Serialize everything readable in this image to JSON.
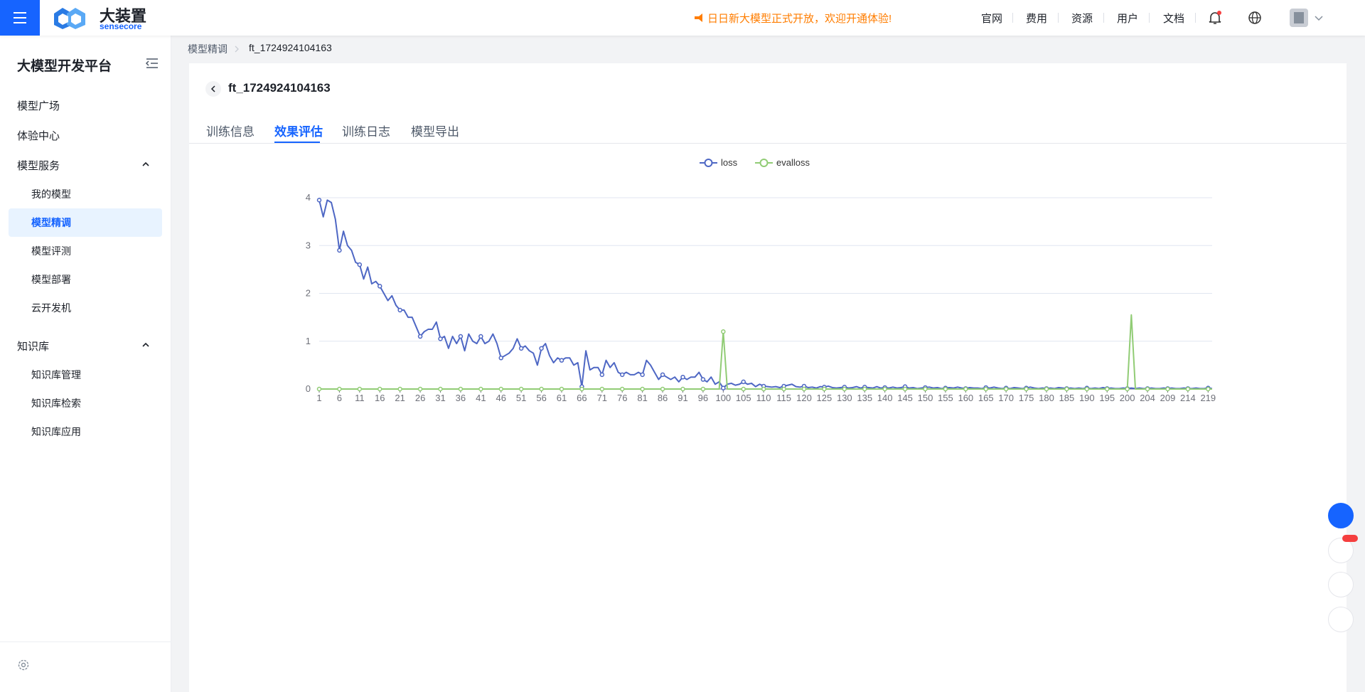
{
  "header": {
    "logo": {
      "name": "大装置",
      "sub": "sensecore"
    },
    "notice": "日日新大模型正式开放，欢迎开通体验!",
    "nav": [
      "官网",
      "费用",
      "资源",
      "用户",
      "文档"
    ]
  },
  "sidebar": {
    "title": "大模型开发平台",
    "menu": [
      "模型广场",
      "体验中心"
    ],
    "groups": [
      {
        "label": "模型服务",
        "items": [
          "我的模型",
          "模型精调",
          "模型评测",
          "模型部署",
          "云开发机"
        ]
      },
      {
        "label": "知识库",
        "items": [
          "知识库管理",
          "知识库检索",
          "知识库应用"
        ]
      }
    ]
  },
  "breadcrumb": [
    "模型精调",
    "ft_1724924104163"
  ],
  "page_title": "ft_1724924104163",
  "tabs": [
    "训练信息",
    "效果评估",
    "训练日志",
    "模型导出"
  ],
  "chart_data": {
    "type": "line",
    "legend": "top",
    "grid": true,
    "ylim": [
      0,
      4
    ],
    "yticks": [
      0,
      1,
      2,
      3,
      4
    ],
    "categories": [
      1,
      null,
      null,
      null,
      null,
      6,
      null,
      null,
      null,
      null,
      11,
      null,
      null,
      null,
      null,
      16,
      null,
      null,
      null,
      null,
      21,
      null,
      null,
      null,
      null,
      26,
      null,
      null,
      null,
      null,
      31,
      null,
      null,
      null,
      null,
      36,
      null,
      null,
      null,
      null,
      41,
      null,
      null,
      null,
      null,
      46,
      null,
      null,
      null,
      null,
      51,
      null,
      null,
      null,
      null,
      56,
      null,
      null,
      null,
      null,
      61,
      null,
      null,
      null,
      null,
      66,
      null,
      null,
      null,
      null,
      71,
      null,
      null,
      null,
      null,
      76,
      null,
      null,
      null,
      null,
      81,
      null,
      null,
      null,
      null,
      86,
      null,
      null,
      null,
      null,
      91,
      null,
      null,
      null,
      null,
      96,
      null,
      null,
      null,
      null,
      100,
      null,
      null,
      null,
      null,
      105,
      null,
      null,
      null,
      null,
      110,
      null,
      null,
      null,
      null,
      115,
      null,
      null,
      null,
      null,
      120,
      null,
      null,
      null,
      null,
      125,
      null,
      null,
      null,
      null,
      130,
      null,
      null,
      null,
      null,
      135,
      null,
      null,
      null,
      null,
      140,
      null,
      null,
      null,
      null,
      145,
      null,
      null,
      null,
      null,
      150,
      null,
      null,
      null,
      null,
      155,
      null,
      null,
      null,
      null,
      160,
      null,
      null,
      null,
      null,
      165,
      null,
      null,
      null,
      null,
      170,
      null,
      null,
      null,
      null,
      175,
      null,
      null,
      null,
      null,
      180,
      null,
      null,
      null,
      null,
      185,
      null,
      null,
      null,
      null,
      190,
      null,
      null,
      null,
      null,
      195,
      null,
      null,
      null,
      null,
      200,
      null,
      null,
      null,
      null,
      204,
      null,
      null,
      null,
      null,
      209,
      null,
      null,
      null,
      null,
      214,
      null,
      null,
      null,
      null,
      219,
      null
    ],
    "series": [
      {
        "name": "loss",
        "color": "#4e67c4",
        "values": [
          3.95,
          3.6,
          3.95,
          3.9,
          3.55,
          2.9,
          3.3,
          3.0,
          2.9,
          2.65,
          2.6,
          2.3,
          2.55,
          2.2,
          2.25,
          2.15,
          2.0,
          1.85,
          1.95,
          1.75,
          1.65,
          1.65,
          1.5,
          1.5,
          1.3,
          1.1,
          1.2,
          1.25,
          1.25,
          1.4,
          1.05,
          1.1,
          0.85,
          1.1,
          0.95,
          1.1,
          0.8,
          1.15,
          1.0,
          0.95,
          1.1,
          0.95,
          1.0,
          1.15,
          0.95,
          0.65,
          0.7,
          0.75,
          0.85,
          1.05,
          0.85,
          0.9,
          0.8,
          0.75,
          0.5,
          0.85,
          0.95,
          0.7,
          0.55,
          0.65,
          0.6,
          0.65,
          0.65,
          0.5,
          0.55,
          0.05,
          0.8,
          0.4,
          0.45,
          0.45,
          0.3,
          0.6,
          0.45,
          0.55,
          0.35,
          0.3,
          0.35,
          0.3,
          0.3,
          0.35,
          0.3,
          0.6,
          0.5,
          0.35,
          0.2,
          0.3,
          0.25,
          0.2,
          0.25,
          0.15,
          0.25,
          0.2,
          0.25,
          0.25,
          0.35,
          0.2,
          0.15,
          0.25,
          0.1,
          0.15,
          0.02,
          0.1,
          0.12,
          0.08,
          0.1,
          0.15,
          0.1,
          0.12,
          0.05,
          0.1,
          0.06,
          0.05,
          0.04,
          0.05,
          0.03,
          0.06,
          0.08,
          0.1,
          0.05,
          0.04,
          0.06,
          0.03,
          0.04,
          0.02,
          0.05,
          0.04,
          0.06,
          0.03,
          0.02,
          0.03,
          0.04,
          0.02,
          0.03,
          0.05,
          0.02,
          0.04,
          0.03,
          0.02,
          0.05,
          0.02,
          0.03,
          0.02,
          0.04,
          0.02,
          0.03,
          0.05,
          0.02,
          0.03,
          0.01,
          0.02,
          0.03,
          0.04,
          0.02,
          0.03,
          0.01,
          0.02,
          0.03,
          0.02,
          0.04,
          0.02,
          0.01,
          0.03,
          0.02,
          0.02,
          0.01,
          0.03,
          0.02,
          0.04,
          0.02,
          0.01,
          0.02,
          0.01,
          0.03,
          0.02,
          0.01,
          0.02,
          0.04,
          0.02,
          0.01,
          0.02,
          0.01,
          0.02,
          0.01,
          0.03,
          0.02,
          0.01,
          0.02,
          0.01,
          0.02,
          0.01,
          0.02,
          0.01,
          0.02,
          0.01,
          0.03,
          0.01,
          0.02,
          0.01,
          0.01,
          0.02,
          0.01,
          0.02,
          0.01,
          0.02,
          0.01,
          0.01,
          0.02,
          0.01,
          0.01,
          0.02,
          0.01,
          0.02,
          0.01,
          0.01,
          0.02,
          0.01,
          0.01,
          0.02,
          0.01,
          0.01,
          0.02,
          0.01
        ]
      },
      {
        "name": "evalloss",
        "color": "#91cc75",
        "values": [
          0,
          0,
          0,
          0,
          0,
          0,
          0,
          0,
          0,
          0,
          0,
          0,
          0,
          0,
          0,
          0,
          0,
          0,
          0,
          0,
          0,
          0,
          0,
          0,
          0,
          0,
          0,
          0,
          0,
          0,
          0,
          0,
          0,
          0,
          0,
          0,
          0,
          0,
          0,
          0,
          0,
          0,
          0,
          0,
          0,
          0,
          0,
          0,
          0,
          0,
          0,
          0,
          0,
          0,
          0,
          0,
          0,
          0,
          0,
          0,
          0,
          0,
          0,
          0,
          0,
          0,
          0,
          0,
          0,
          0,
          0,
          0,
          0,
          0,
          0,
          0,
          0,
          0,
          0,
          0,
          0,
          0,
          0,
          0,
          0,
          0,
          0,
          0,
          0,
          0,
          0,
          0,
          0,
          0,
          0,
          0,
          0,
          0,
          0,
          0,
          1.2,
          0,
          0,
          0,
          0,
          0,
          0,
          0,
          0,
          0,
          0,
          0,
          0,
          0,
          0,
          0,
          0,
          0,
          0,
          0,
          0,
          0,
          0,
          0,
          0,
          0,
          0,
          0,
          0,
          0,
          0,
          0,
          0,
          0,
          0,
          0,
          0,
          0,
          0,
          0,
          0,
          0,
          0,
          0,
          0,
          0,
          0,
          0,
          0,
          0,
          0,
          0,
          0,
          0,
          0,
          0,
          0,
          0,
          0,
          0,
          0,
          0,
          0,
          0,
          0,
          0,
          0,
          0,
          0,
          0,
          0,
          0,
          0,
          0,
          0,
          0,
          0,
          0,
          0,
          0,
          0,
          0,
          0,
          0,
          0,
          0,
          0,
          0,
          0,
          0,
          0,
          0,
          0,
          0,
          0,
          0,
          0,
          0,
          0,
          0,
          0,
          1.55,
          0,
          0,
          0,
          0,
          0,
          0,
          0,
          0,
          0,
          0,
          0,
          0,
          0,
          0,
          0,
          0,
          0,
          0,
          0,
          0
        ]
      }
    ]
  }
}
